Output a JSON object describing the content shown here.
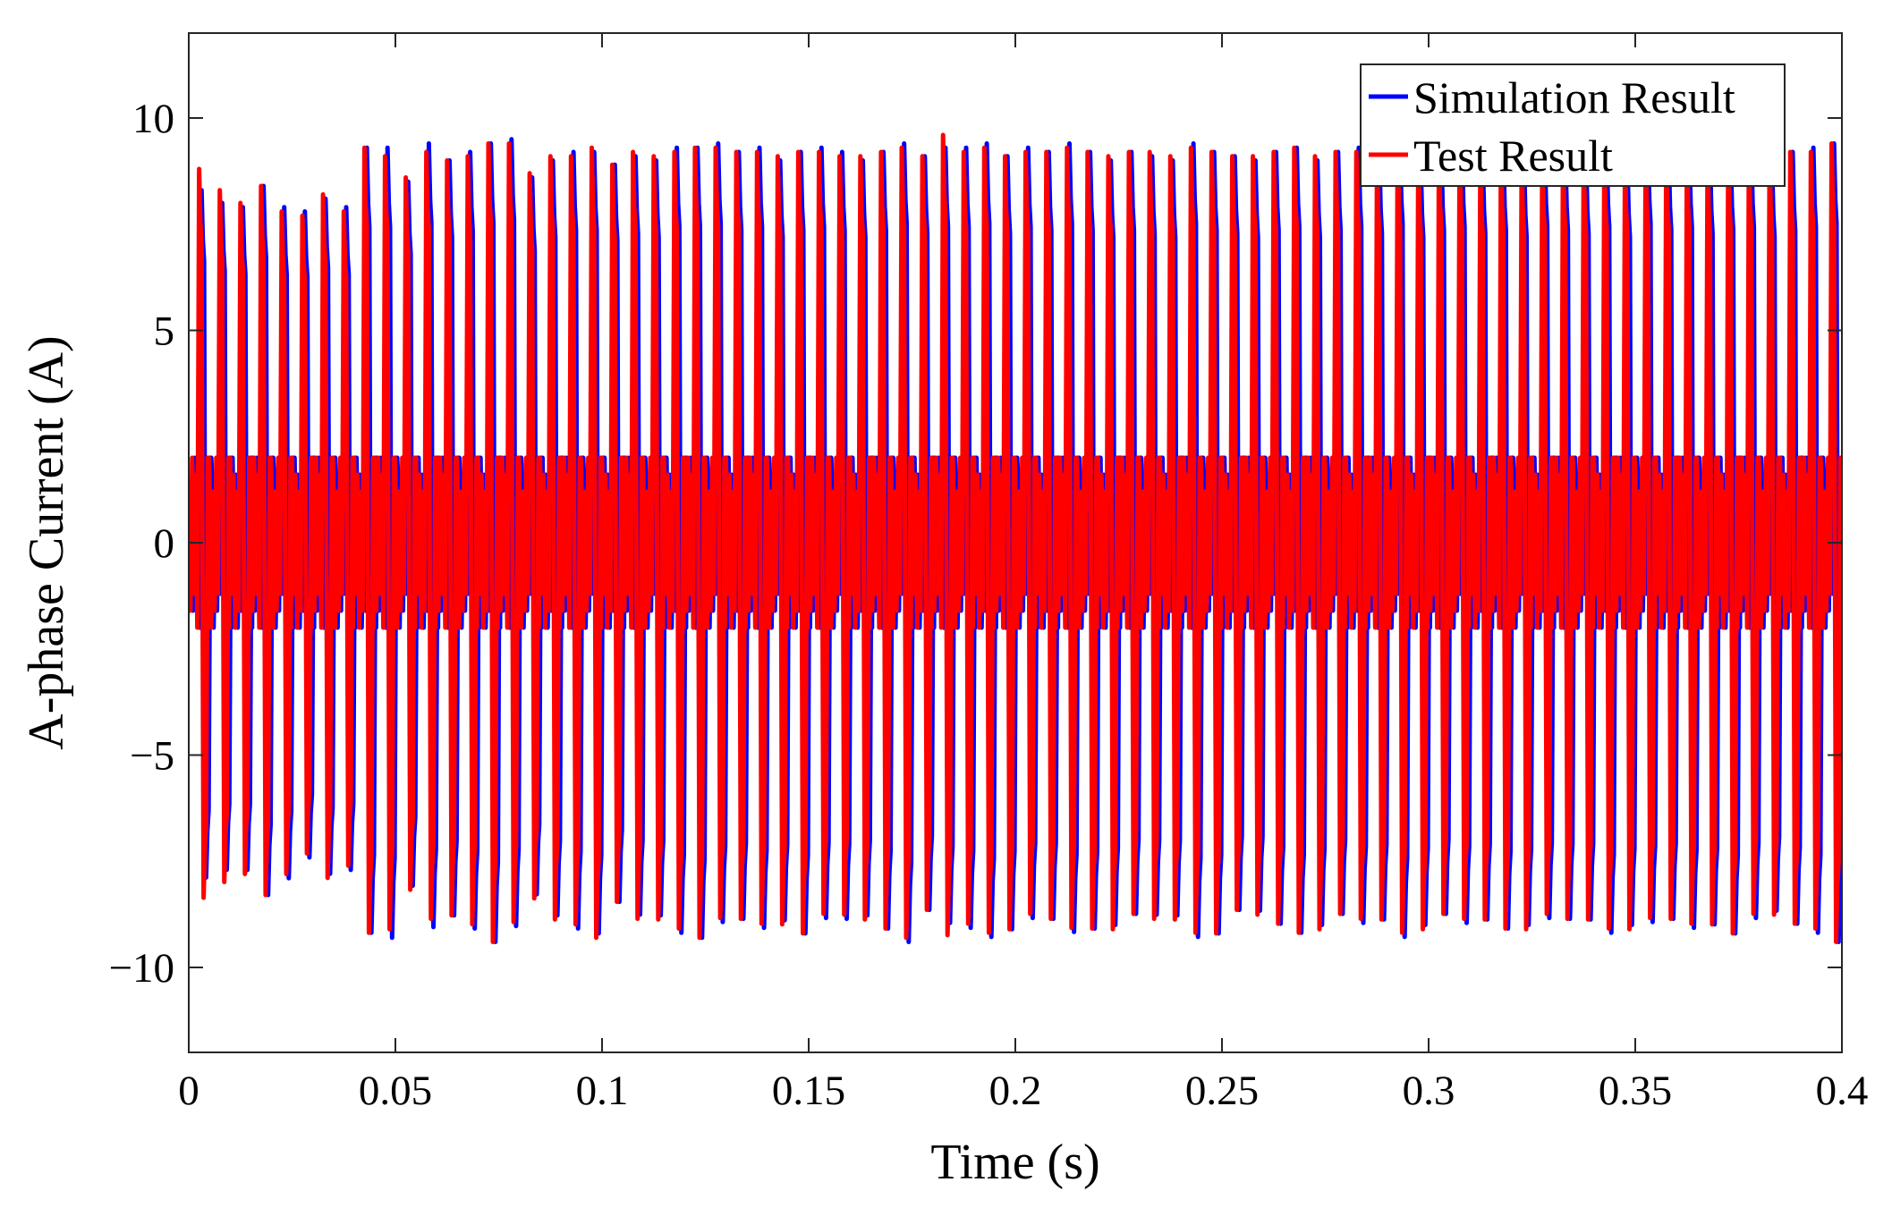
{
  "chart_data": {
    "type": "line",
    "title": "",
    "xlabel": "Time (s)",
    "ylabel": "A-phase Current (A)",
    "xlim": [
      0,
      0.4
    ],
    "ylim": [
      -12,
      12
    ],
    "x_ticks": [
      0,
      0.05,
      0.1,
      0.15,
      0.2,
      0.25,
      0.3,
      0.35,
      0.4
    ],
    "x_tick_labels": [
      "0",
      "0.05",
      "0.1",
      "0.15",
      "0.2",
      "0.25",
      "0.3",
      "0.35",
      "0.4"
    ],
    "y_ticks": [
      -10,
      -5,
      0,
      5,
      10
    ],
    "y_tick_labels": [
      "−10",
      "−5",
      "0",
      "5",
      "10"
    ],
    "grid": false,
    "legend_position": "top-right",
    "series": [
      {
        "name": "Simulation Result",
        "color": "#0000ff",
        "drawn_behind": true,
        "waveform_period_s": 0.005,
        "peak_amplitude_a": [
          8.3,
          8.0,
          7.9,
          8.4,
          7.9,
          7.8,
          8.1,
          7.9,
          9.3,
          9.3,
          8.5,
          9.4,
          9.0,
          9.2,
          9.4,
          9.5,
          8.6,
          9.0,
          9.2,
          9.2,
          8.9,
          9.1,
          9.0,
          9.3,
          9.3,
          9.4,
          9.2,
          9.3,
          9.0,
          9.2,
          9.3,
          9.2,
          9.0,
          9.2,
          9.4,
          9.1,
          9.3,
          9.3,
          9.4,
          9.1,
          9.3,
          9.2,
          9.4,
          9.2,
          9.0,
          9.2,
          9.1,
          9.0,
          9.4,
          9.2,
          9.1,
          9.0,
          9.2,
          9.3,
          9.0,
          9.2,
          9.3,
          9.1,
          9.4,
          9.0,
          9.2,
          9.3,
          9.1,
          9.2,
          9.0,
          9.3,
          9.2,
          9.1,
          9.3,
          9.0,
          9.4,
          9.2,
          9.3,
          9.1,
          9.2,
          9.3,
          9.0,
          9.2,
          9.3,
          9.4
        ]
      },
      {
        "name": "Test Result",
        "color": "#ff0000",
        "drawn_behind": false,
        "waveform_period_s": 0.005,
        "peak_amplitude_a": [
          8.8,
          8.3,
          8.0,
          8.4,
          7.8,
          7.7,
          8.2,
          7.8,
          9.3,
          9.1,
          8.6,
          9.2,
          9.0,
          9.1,
          9.4,
          9.4,
          8.7,
          9.1,
          9.1,
          9.3,
          8.9,
          9.2,
          9.1,
          9.2,
          9.3,
          9.3,
          9.2,
          9.2,
          9.1,
          9.2,
          9.2,
          9.1,
          9.1,
          9.2,
          9.3,
          9.1,
          9.6,
          9.2,
          9.3,
          9.1,
          9.2,
          9.2,
          9.3,
          9.2,
          9.1,
          9.2,
          9.2,
          9.1,
          9.3,
          9.2,
          9.1,
          9.1,
          9.2,
          9.3,
          9.1,
          9.2,
          9.2,
          9.1,
          9.3,
          9.1,
          9.2,
          9.2,
          9.1,
          9.2,
          9.1,
          9.2,
          9.2,
          9.1,
          9.2,
          9.1,
          9.3,
          9.2,
          9.2,
          9.1,
          9.2,
          9.2,
          9.1,
          9.2,
          9.2,
          9.4
        ]
      }
    ],
    "band_amplitude_a": 2.0
  }
}
